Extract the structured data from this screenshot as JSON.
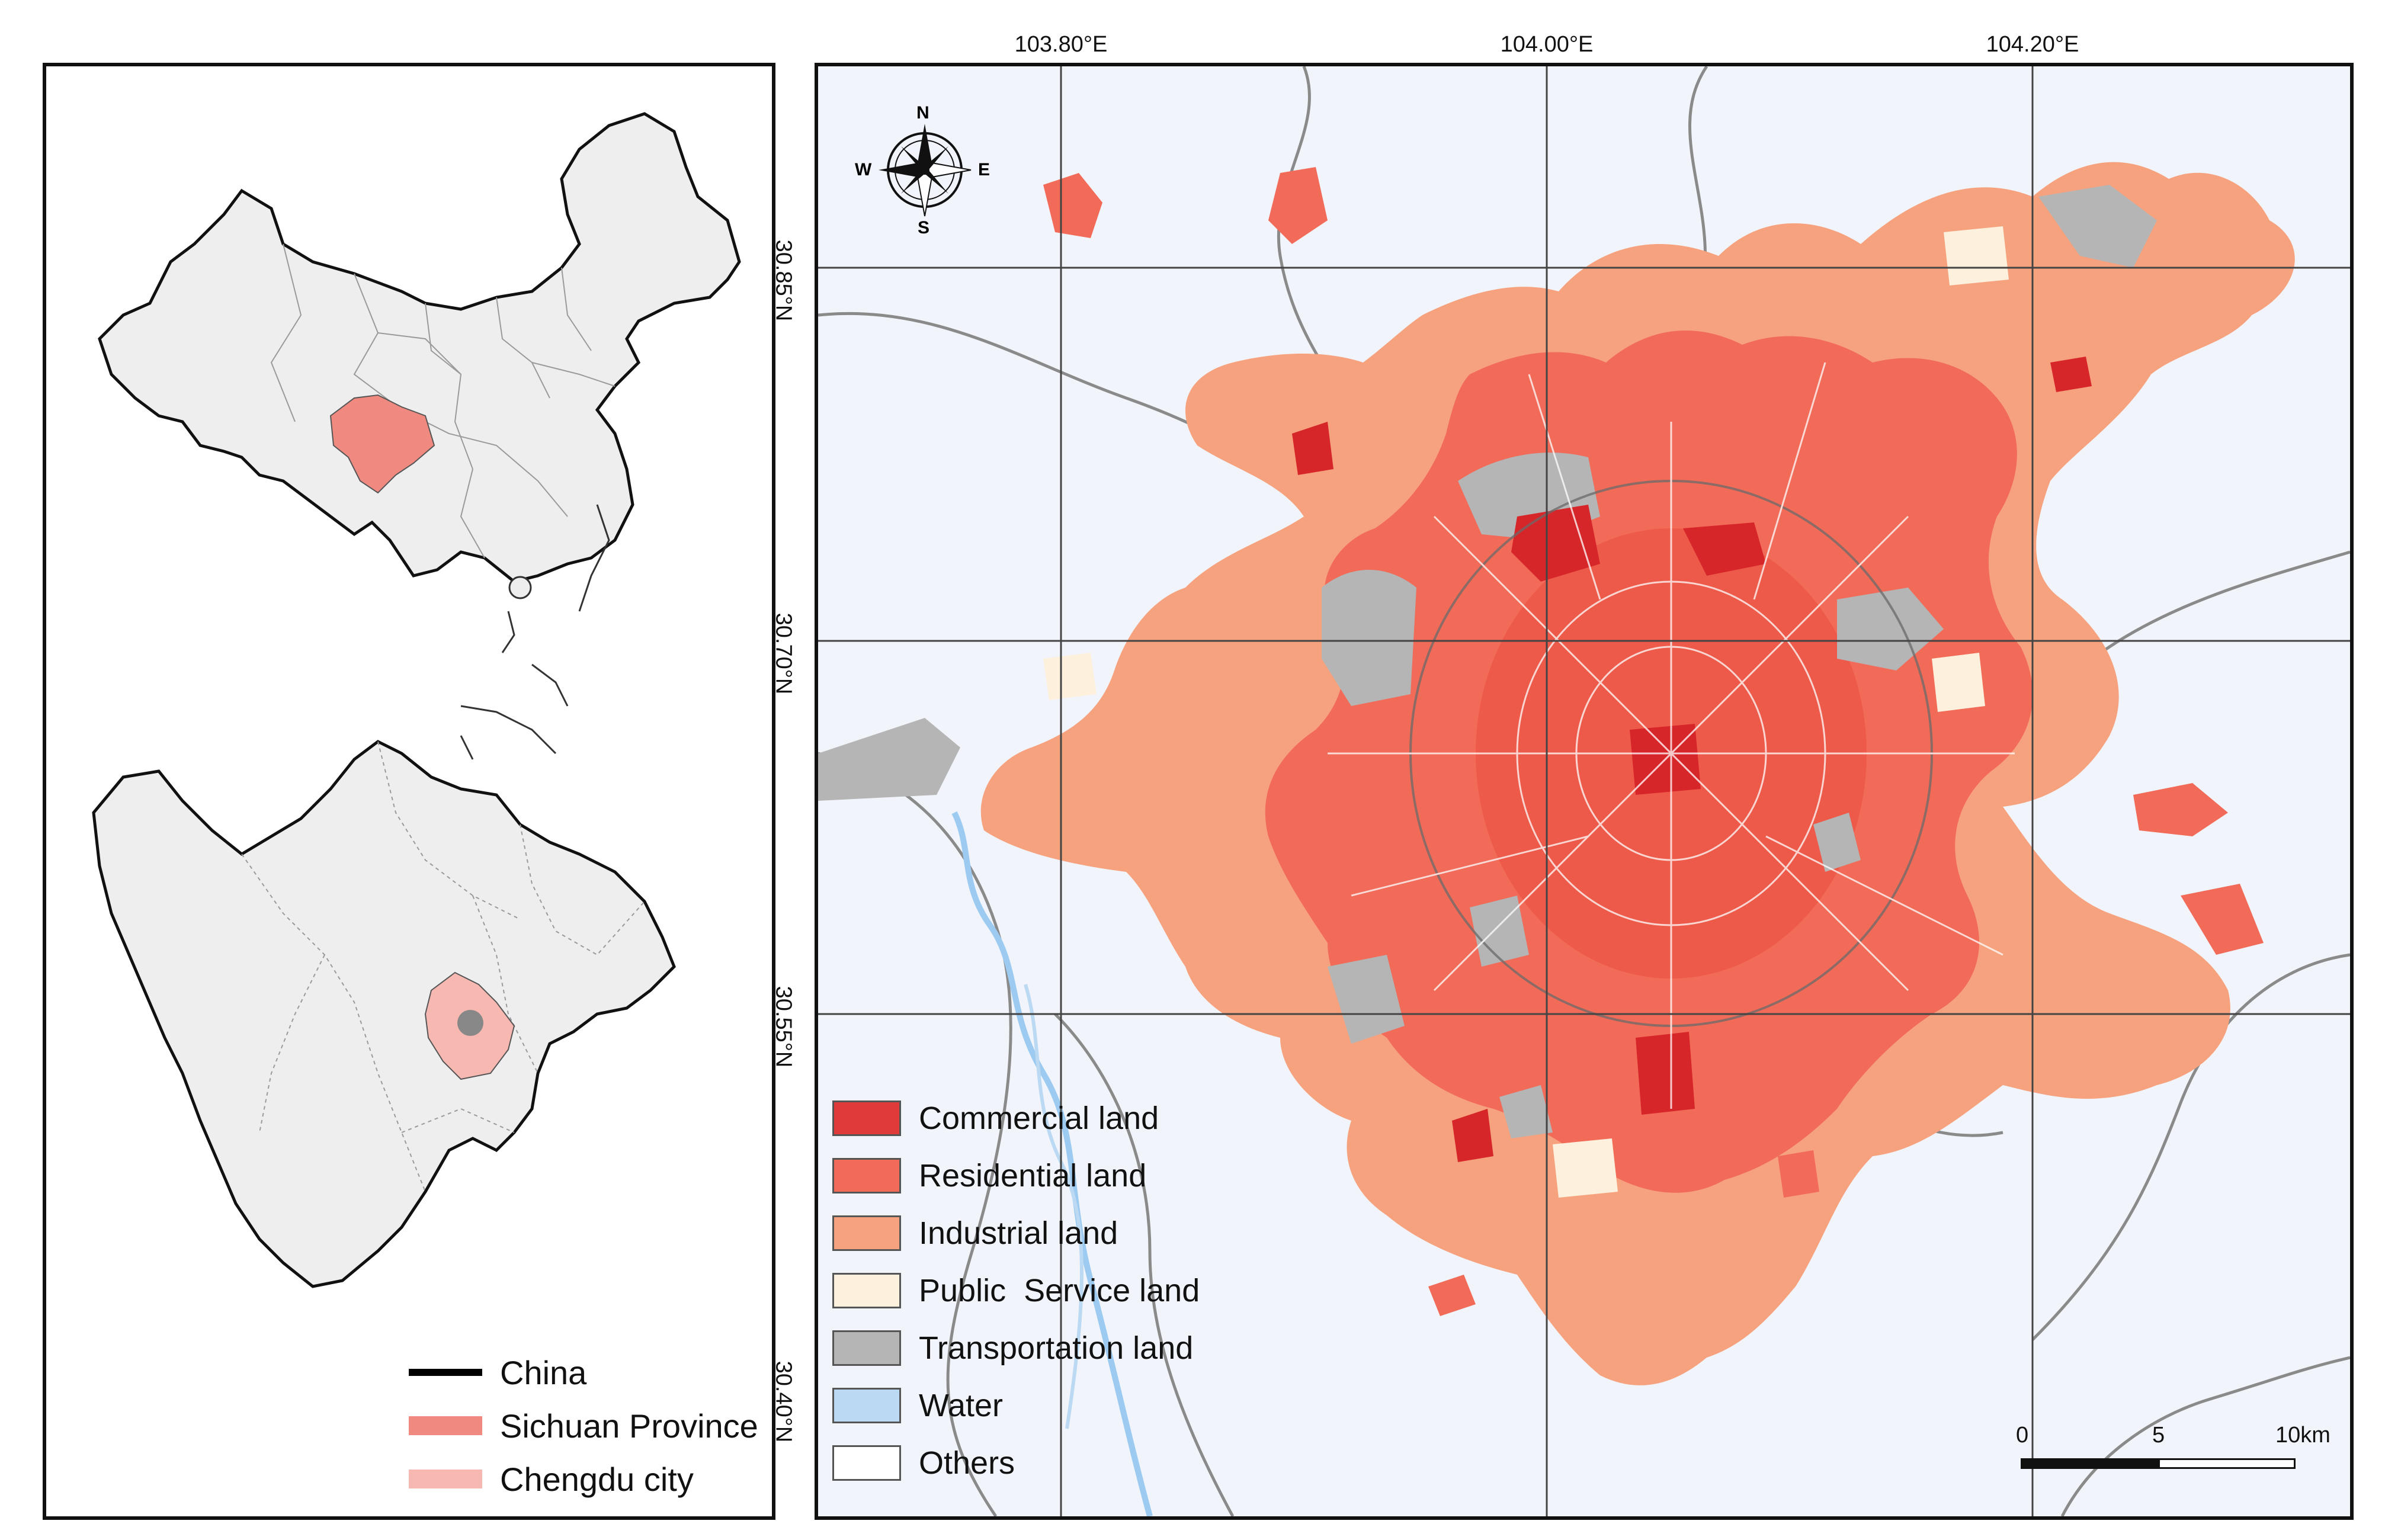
{
  "left_panel": {
    "legend": [
      {
        "label": "China",
        "color": "#000000",
        "kind": "line"
      },
      {
        "label": "Sichuan Province",
        "color": "#f08a80",
        "kind": "fill"
      },
      {
        "label": "Chengdu city",
        "color": "#f7b8b2",
        "kind": "fill"
      }
    ]
  },
  "map": {
    "longitude_labels": [
      "103.80°E",
      "104.00°E",
      "104.20°E"
    ],
    "latitude_labels": [
      "30.85°N",
      "30.70°N",
      "30.55°N",
      "30.40°N"
    ],
    "compass": {
      "north": "N",
      "south": "S",
      "east": "E",
      "west": "W"
    },
    "legend": [
      {
        "label": "Commercial land",
        "color": "#e03a3a"
      },
      {
        "label": "Residential land",
        "color": "#f26a58"
      },
      {
        "label": "Industrial land",
        "color": "#f6a27e"
      },
      {
        "label": "Public  Service land",
        "color": "#fdf0dc"
      },
      {
        "label": "Transportation land",
        "color": "#b5b5b5"
      },
      {
        "label": "Water",
        "color": "#bcd9f3"
      },
      {
        "label": "Others",
        "color": "#ffffff"
      }
    ],
    "scale_bar": {
      "labels": [
        "0",
        "5",
        "10km"
      ]
    }
  }
}
